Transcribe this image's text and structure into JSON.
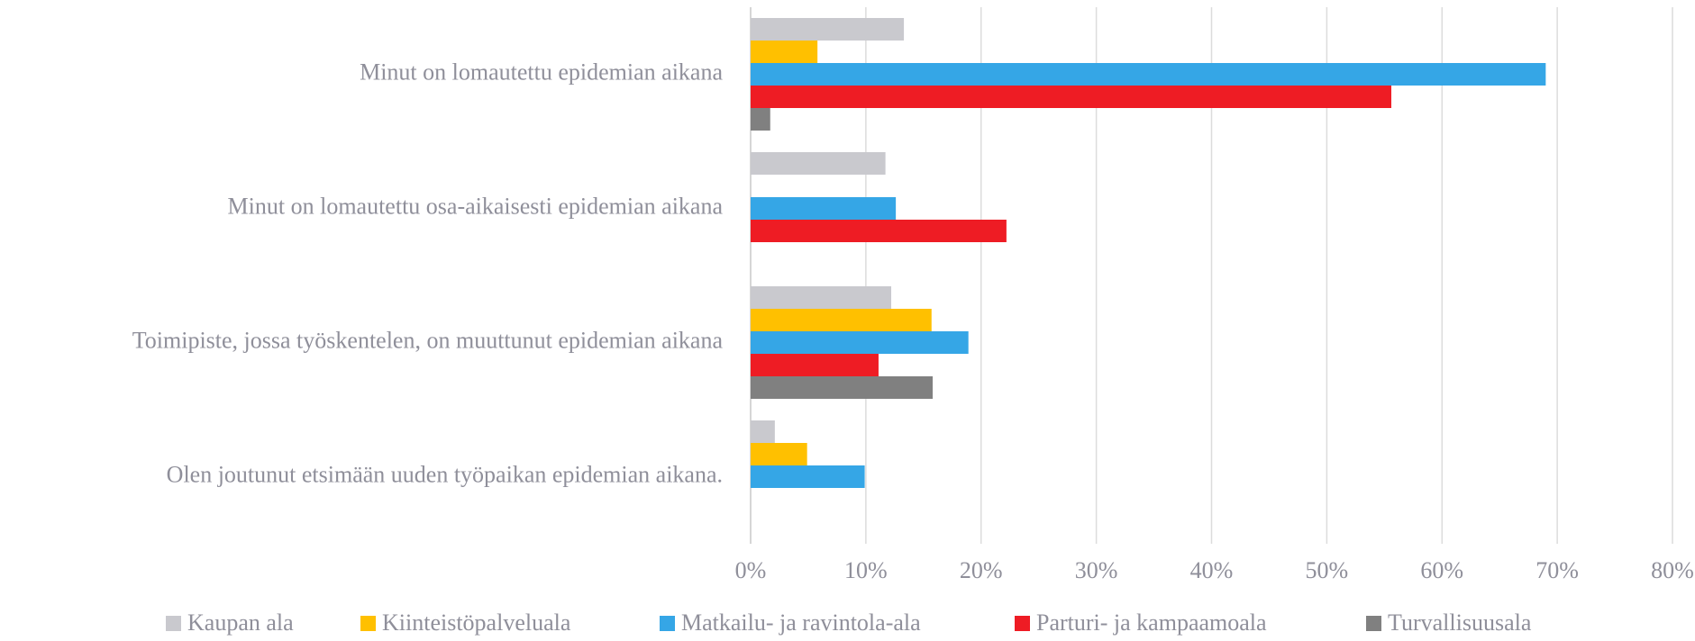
{
  "chart_data": {
    "type": "bar",
    "orientation": "horizontal",
    "categories": [
      "Minut on lomautettu epidemian aikana",
      "Minut on lomautettu osa-aikaisesti epidemian aikana",
      "Toimipiste, jossa työskentelen, on muuttunut epidemian aikana",
      "Olen joutunut etsimään uuden työpaikan epidemian aikana."
    ],
    "series": [
      {
        "name": "Kaupan ala",
        "color": "#c9c9ce",
        "values": [
          13.3,
          11.7,
          12.2,
          2.1
        ]
      },
      {
        "name": "Kiinteistöpalveluala",
        "color": "#ffc000",
        "values": [
          5.8,
          null,
          15.7,
          4.9
        ]
      },
      {
        "name": "Matkailu- ja ravintola-ala",
        "color": "#35a6e6",
        "values": [
          69,
          12.6,
          18.9,
          9.9
        ]
      },
      {
        "name": "Parturi- ja kampaamoala",
        "color": "#ee1c24",
        "values": [
          55.6,
          22.2,
          11.1,
          null
        ]
      },
      {
        "name": "Turvallisuusala",
        "color": "#808080",
        "values": [
          1.7,
          null,
          15.8,
          null
        ]
      }
    ],
    "xlim": [
      0,
      80
    ],
    "xticks": [
      {
        "value": 0,
        "label": "0%"
      },
      {
        "value": 10,
        "label": "10%"
      },
      {
        "value": 20,
        "label": "20%"
      },
      {
        "value": 30,
        "label": "30%"
      },
      {
        "value": 40,
        "label": "40%"
      },
      {
        "value": 50,
        "label": "50%"
      },
      {
        "value": 60,
        "label": "60%"
      },
      {
        "value": 70,
        "label": "70%"
      },
      {
        "value": 80,
        "label": "80%"
      }
    ],
    "grid": true,
    "legend": "bottom"
  }
}
